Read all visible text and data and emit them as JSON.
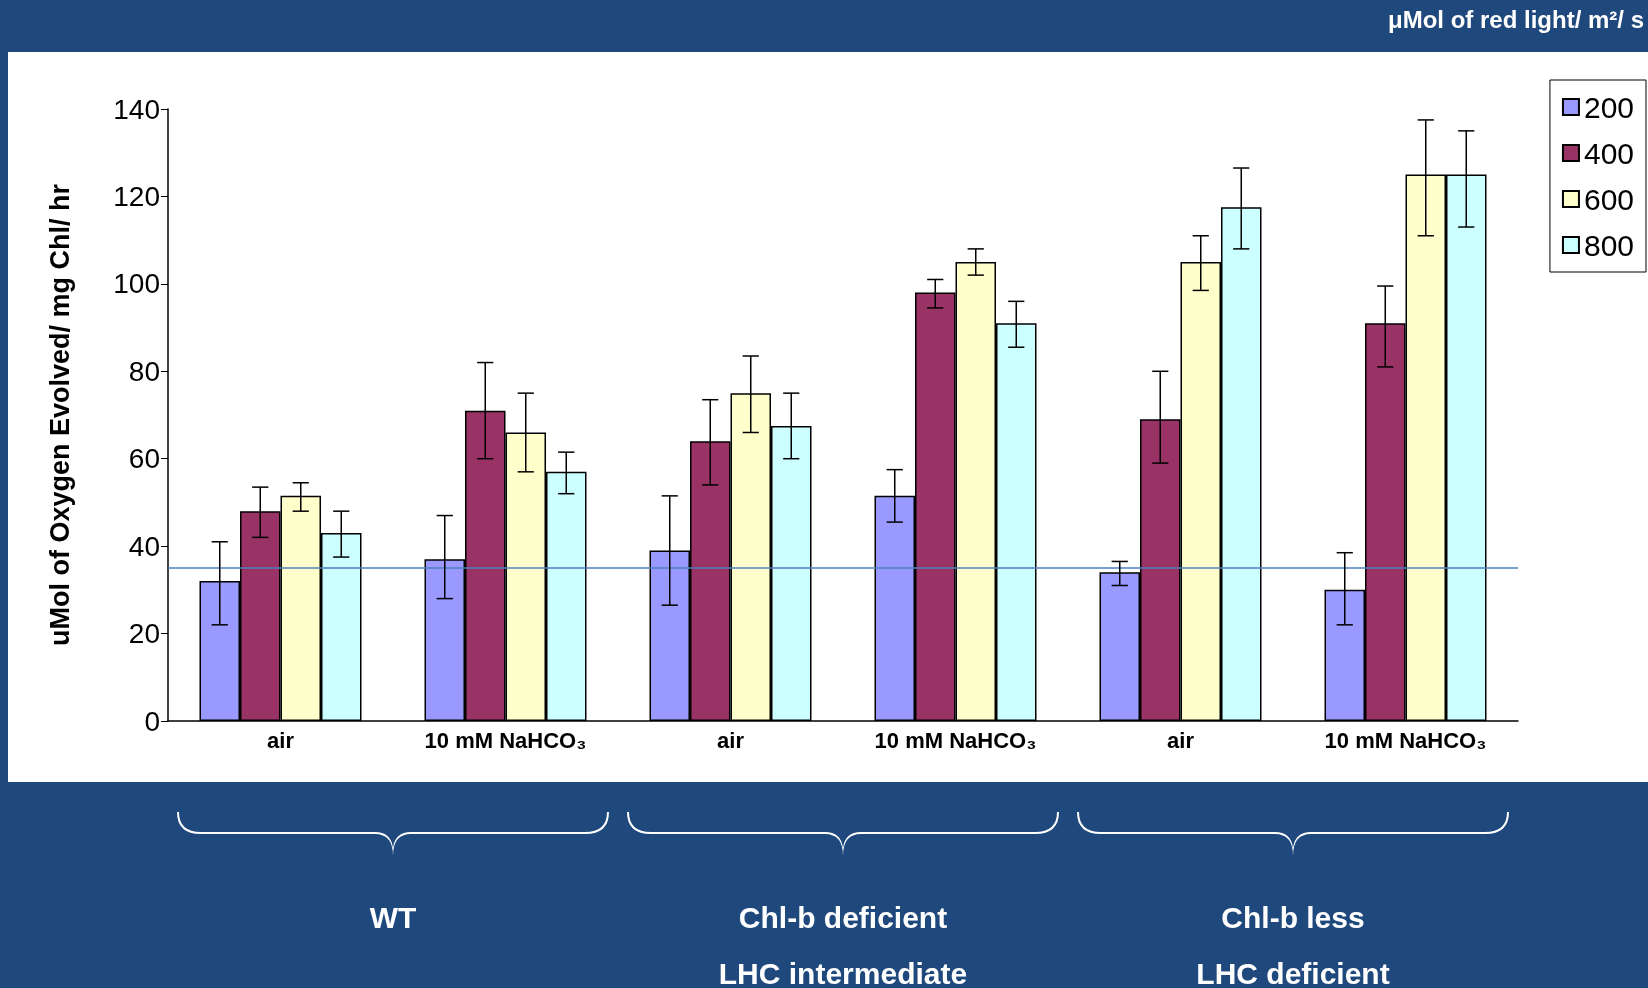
{
  "chart_data": {
    "type": "bar",
    "ylabel": "uMol of Oxygen Evolved/ mg Chl/ hr",
    "legend_title": "μMol of red light/ m²/ s",
    "categories": [
      "air",
      "10 mM NaHCO₃",
      "air",
      "10 mM NaHCO₃",
      "air",
      "10 mM NaHCO₃"
    ],
    "series": [
      {
        "name": "200",
        "color": "#9999ff",
        "values": [
          32,
          37,
          39,
          51.5,
          34,
          30
        ],
        "errors": [
          [
            22,
            41
          ],
          [
            28,
            47
          ],
          [
            26.5,
            51.5
          ],
          [
            45.5,
            57.5
          ],
          [
            31,
            36.5
          ],
          [
            22,
            38.5
          ]
        ]
      },
      {
        "name": "400",
        "color": "#993366",
        "values": [
          48,
          71,
          64,
          98,
          69,
          91
        ],
        "errors": [
          [
            42,
            53.5
          ],
          [
            60,
            82
          ],
          [
            54,
            73.5
          ],
          [
            94.5,
            101
          ],
          [
            59,
            80
          ],
          [
            81,
            99.5
          ]
        ]
      },
      {
        "name": "600",
        "color": "#ffffcc",
        "values": [
          51.5,
          66,
          75,
          105,
          105,
          125
        ],
        "errors": [
          [
            48,
            54.5
          ],
          [
            57,
            75
          ],
          [
            66,
            83.5
          ],
          [
            102,
            108
          ],
          [
            98.5,
            111
          ],
          [
            111,
            137.5
          ]
        ]
      },
      {
        "name": "800",
        "color": "#ccffff",
        "values": [
          43,
          57,
          67.5,
          91,
          117.5,
          125
        ],
        "errors": [
          [
            37.5,
            48
          ],
          [
            52,
            61.5
          ],
          [
            60,
            75
          ],
          [
            85.5,
            96
          ],
          [
            108,
            126.5
          ],
          [
            113,
            135
          ]
        ]
      }
    ],
    "ylim": [
      0,
      140
    ],
    "yticks": [
      0,
      20,
      40,
      60,
      80,
      100,
      120,
      140
    ],
    "grid": false,
    "legend": "top right",
    "ref_lines": [
      {
        "axis": "y",
        "value": 35,
        "color": "#4f81bd"
      }
    ],
    "annotations": [
      "WT",
      "Chl-b deficient\nLHC intermediate",
      "Chl-b less\nLHC deficient"
    ]
  }
}
